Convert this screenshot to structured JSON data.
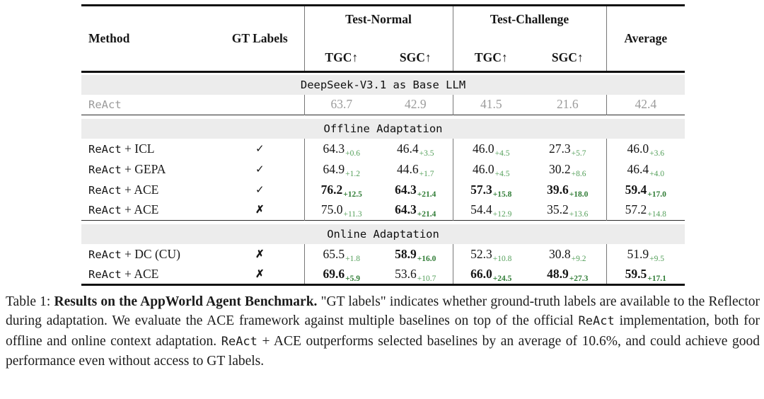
{
  "table": {
    "header": {
      "method": "Method",
      "gt_labels": "GT Labels",
      "groups": [
        {
          "label": "Test-Normal"
        },
        {
          "label": "Test-Challenge"
        }
      ],
      "average": "Average",
      "subcols": [
        "TGC↑",
        "SGC↑",
        "TGC↑",
        "SGC↑"
      ]
    },
    "symbols": {
      "check": "✓",
      "cross": "✗"
    },
    "sections": [
      {
        "title": "DeepSeek-V3.1 as Base LLM",
        "rows": [
          {
            "method": [
              {
                "t": "ReAct",
                "mono": true
              }
            ],
            "gt": "",
            "muted": true,
            "cells": [
              {
                "v": "63.7"
              },
              {
                "v": "42.9"
              },
              {
                "v": "41.5"
              },
              {
                "v": "21.6"
              },
              {
                "v": "42.4"
              }
            ]
          }
        ]
      },
      {
        "title": "Offline Adaptation",
        "rows": [
          {
            "method": [
              {
                "t": "ReAct",
                "mono": true
              },
              {
                "t": " + ICL"
              }
            ],
            "gt": "check",
            "cells": [
              {
                "v": "64.3",
                "d": "+0.6"
              },
              {
                "v": "46.4",
                "d": "+3.5"
              },
              {
                "v": "46.0",
                "d": "+4.5"
              },
              {
                "v": "27.3",
                "d": "+5.7"
              },
              {
                "v": "46.0",
                "d": "+3.6"
              }
            ]
          },
          {
            "method": [
              {
                "t": "ReAct",
                "mono": true
              },
              {
                "t": " + GEPA"
              }
            ],
            "gt": "check",
            "cells": [
              {
                "v": "64.9",
                "d": "+1.2"
              },
              {
                "v": "44.6",
                "d": "+1.7"
              },
              {
                "v": "46.0",
                "d": "+4.5"
              },
              {
                "v": "30.2",
                "d": "+8.6"
              },
              {
                "v": "46.4",
                "d": "+4.0"
              }
            ]
          },
          {
            "method": [
              {
                "t": "ReAct",
                "mono": true
              },
              {
                "t": " + ACE"
              }
            ],
            "gt": "check",
            "cells": [
              {
                "v": "76.2",
                "d": "+12.5",
                "b": true
              },
              {
                "v": "64.3",
                "d": "+21.4",
                "b": true
              },
              {
                "v": "57.3",
                "d": "+15.8",
                "b": true
              },
              {
                "v": "39.6",
                "d": "+18.0",
                "b": true
              },
              {
                "v": "59.4",
                "d": "+17.0",
                "b": true
              }
            ]
          },
          {
            "method": [
              {
                "t": "ReAct",
                "mono": true
              },
              {
                "t": " + ACE"
              }
            ],
            "gt": "cross",
            "cells": [
              {
                "v": "75.0",
                "d": "+11.3"
              },
              {
                "v": "64.3",
                "d": "+21.4",
                "b": true
              },
              {
                "v": "54.4",
                "d": "+12.9"
              },
              {
                "v": "35.2",
                "d": "+13.6"
              },
              {
                "v": "57.2",
                "d": "+14.8"
              }
            ]
          }
        ]
      },
      {
        "title": "Online Adaptation",
        "rows": [
          {
            "method": [
              {
                "t": "ReAct",
                "mono": true
              },
              {
                "t": " + DC (CU)"
              }
            ],
            "gt": "cross",
            "cells": [
              {
                "v": "65.5",
                "d": "+1.8"
              },
              {
                "v": "58.9",
                "d": "+16.0",
                "b": true
              },
              {
                "v": "52.3",
                "d": "+10.8"
              },
              {
                "v": "30.8",
                "d": "+9.2"
              },
              {
                "v": "51.9",
                "d": "+9.5"
              }
            ]
          },
          {
            "method": [
              {
                "t": "ReAct",
                "mono": true
              },
              {
                "t": " + ACE"
              }
            ],
            "gt": "cross",
            "cells": [
              {
                "v": "69.6",
                "d": "+5.9",
                "b": true
              },
              {
                "v": "53.6",
                "d": "+10.7"
              },
              {
                "v": "66.0",
                "d": "+24.5",
                "b": true
              },
              {
                "v": "48.9",
                "d": "+27.3",
                "b": true
              },
              {
                "v": "59.5",
                "d": "+17.1",
                "b": true
              }
            ]
          }
        ]
      }
    ]
  },
  "caption": {
    "segments": [
      {
        "t": "Table 1: "
      },
      {
        "t": "Results on the AppWorld Agent Benchmark.",
        "bold": true
      },
      {
        "t": " \"GT labels\" indicates whether ground-truth labels are available to the Reflector during adaptation. We evaluate the ACE framework against multiple baselines on top of the official "
      },
      {
        "t": "ReAct",
        "mono": true
      },
      {
        "t": " implementation, both for offline and online context adaptation. "
      },
      {
        "t": "ReAct",
        "mono": true
      },
      {
        "t": " + ACE outperforms selected baselines by an average of 10.6%, and could achieve good performance even without access to GT labels."
      }
    ]
  },
  "colors": {
    "delta_green": "#55a05b",
    "delta_green_bold": "#2f7c35",
    "muted_gray": "#9b9b9b",
    "band_bg": "#ececec",
    "rule_black": "#111111",
    "vline_gray": "#777777"
  }
}
